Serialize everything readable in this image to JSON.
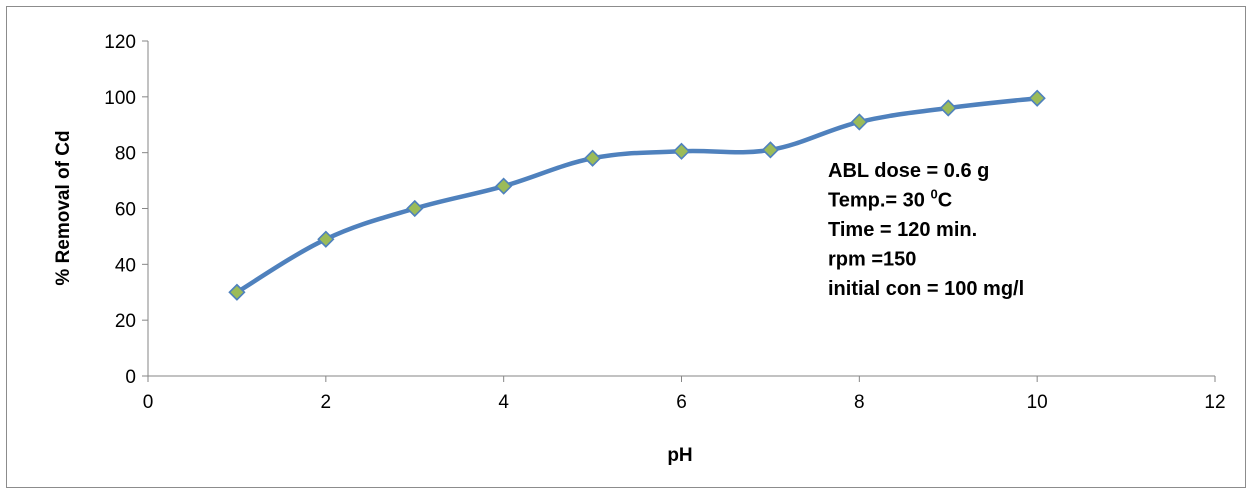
{
  "chart_data": {
    "type": "line",
    "title": "",
    "xlabel": "pH",
    "ylabel": "% Removal  of Cd",
    "xlim": [
      0,
      12
    ],
    "ylim": [
      0,
      120
    ],
    "x_ticks": [
      0,
      2,
      4,
      6,
      8,
      10,
      12
    ],
    "y_ticks": [
      0,
      20,
      40,
      60,
      80,
      100,
      120
    ],
    "grid": false,
    "legend": "none",
    "smooth": true,
    "line_color": "#4f81bd",
    "marker": "diamond",
    "marker_fill": "#9bbb59",
    "marker_stroke": "#4f81bd",
    "series": [
      {
        "x": [
          1,
          2,
          3,
          4,
          5,
          6,
          7,
          8,
          9,
          10
        ],
        "y": [
          30,
          49,
          60,
          68,
          78,
          80.5,
          81,
          91,
          96,
          99.5
        ]
      }
    ],
    "annotations": {
      "lines": [
        {
          "text": "ABL dose = 0.6 g"
        },
        {
          "text": "Temp.= 30  ",
          "sup": "0",
          "after": "C"
        },
        {
          "text": "Time = 120 min."
        },
        {
          "text": "rpm =150"
        },
        {
          "text": "initial con = 100 mg/l"
        }
      ]
    }
  }
}
